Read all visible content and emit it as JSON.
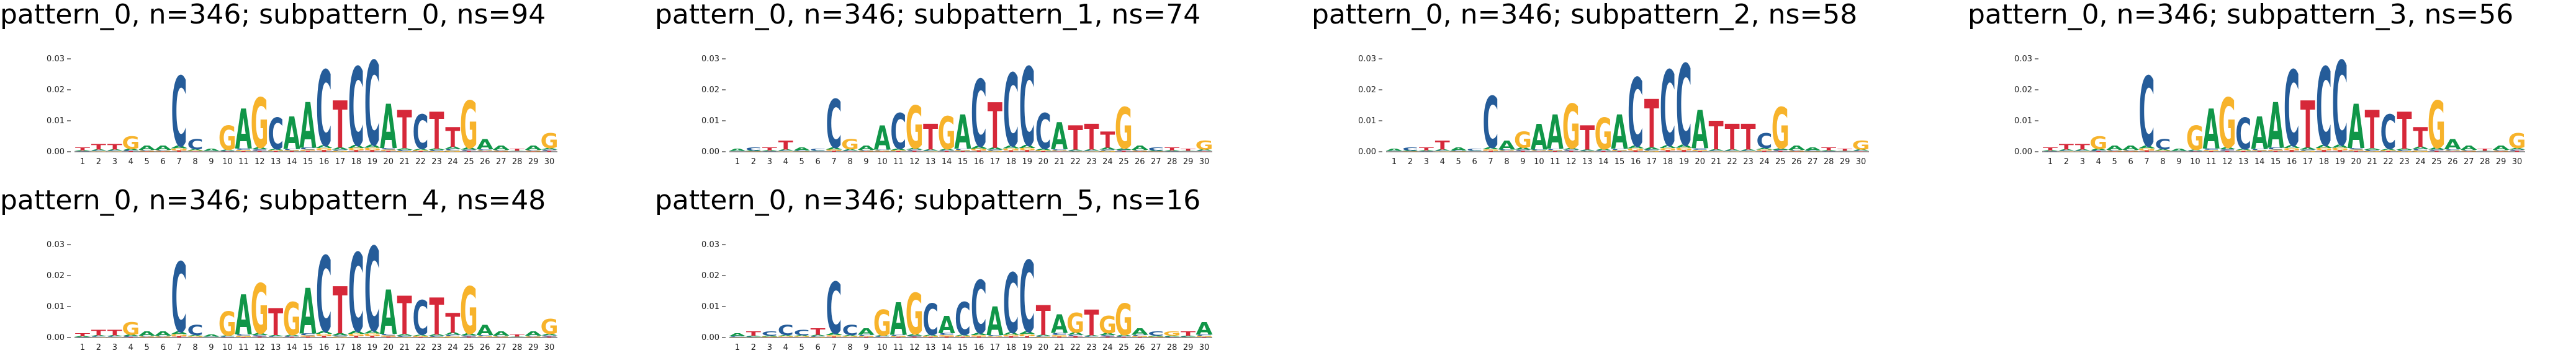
{
  "colors": {
    "A": "#109648",
    "C": "#255C99",
    "G": "#F7B32B",
    "T": "#D62839"
  },
  "chart_data": [
    {
      "type": "sequence-logo",
      "title": "pattern_0, n=346; subpattern_0, ns=94",
      "ylim": [
        0,
        0.035
      ],
      "yticks": [
        "0.00",
        "0.01",
        "0.02",
        "0.03"
      ],
      "positions": [
        "1",
        "2",
        "3",
        "4",
        "5",
        "6",
        "7",
        "8",
        "9",
        "10",
        "11",
        "12",
        "13",
        "14",
        "15",
        "16",
        "17",
        "18",
        "19",
        "20",
        "21",
        "22",
        "23",
        "24",
        "25",
        "26",
        "27",
        "28",
        "29",
        "30"
      ],
      "dominant_letters": [
        "T",
        "T",
        "T",
        "G",
        "A",
        "A",
        "C",
        "C",
        "A",
        "G",
        "A",
        "G",
        "C",
        "A",
        "A",
        "C",
        "T",
        "C",
        "C",
        "A",
        "T",
        "C",
        "T",
        "T",
        "G",
        "A",
        "A",
        "T",
        "A",
        "G"
      ],
      "heights": [
        0.0015,
        0.0025,
        0.0025,
        0.005,
        0.002,
        0.002,
        0.0245,
        0.004,
        0.001,
        0.0085,
        0.014,
        0.0175,
        0.011,
        0.0115,
        0.016,
        0.0265,
        0.0165,
        0.0275,
        0.0295,
        0.0155,
        0.0135,
        0.012,
        0.013,
        0.008,
        0.0165,
        0.004,
        0.002,
        0.001,
        0.002,
        0.006
      ]
    },
    {
      "type": "sequence-logo",
      "title": "pattern_0, n=346; subpattern_1, ns=74",
      "ylim": [
        0,
        0.035
      ],
      "yticks": [
        "0.00",
        "0.01",
        "0.02",
        "0.03"
      ],
      "positions": [
        "1",
        "2",
        "3",
        "4",
        "5",
        "6",
        "7",
        "8",
        "9",
        "10",
        "11",
        "12",
        "13",
        "14",
        "15",
        "16",
        "17",
        "18",
        "19",
        "20",
        "21",
        "22",
        "23",
        "24",
        "25",
        "26",
        "27",
        "28",
        "29",
        "30"
      ],
      "dominant_letters": [
        "A",
        "C",
        "T",
        "T",
        "A",
        "C",
        "C",
        "G",
        "A",
        "A",
        "C",
        "G",
        "T",
        "G",
        "A",
        "C",
        "T",
        "C",
        "C",
        "C",
        "A",
        "T",
        "T",
        "T",
        "G",
        "A",
        "C",
        "T",
        "T",
        "G"
      ],
      "heights": [
        0.001,
        0.0015,
        0.0015,
        0.0035,
        0.0015,
        0.001,
        0.017,
        0.004,
        0.002,
        0.0085,
        0.0125,
        0.015,
        0.009,
        0.0115,
        0.012,
        0.0235,
        0.016,
        0.0255,
        0.0275,
        0.0125,
        0.0095,
        0.0085,
        0.009,
        0.0065,
        0.0145,
        0.002,
        0.0015,
        0.0015,
        0.001,
        0.0035
      ]
    },
    {
      "type": "sequence-logo",
      "title": "pattern_0, n=346; subpattern_2, ns=58",
      "ylim": [
        0,
        0.035
      ],
      "yticks": [
        "0.00",
        "0.01",
        "0.02",
        "0.03"
      ],
      "positions": [
        "1",
        "2",
        "3",
        "4",
        "5",
        "6",
        "7",
        "8",
        "9",
        "10",
        "11",
        "12",
        "13",
        "14",
        "15",
        "16",
        "17",
        "18",
        "19",
        "20",
        "21",
        "22",
        "23",
        "24",
        "25",
        "26",
        "27",
        "28",
        "29",
        "30"
      ],
      "dominant_letters": [
        "A",
        "C",
        "T",
        "T",
        "A",
        "C",
        "C",
        "A",
        "G",
        "A",
        "A",
        "G",
        "T",
        "G",
        "A",
        "C",
        "T",
        "C",
        "C",
        "A",
        "T",
        "T",
        "T",
        "C",
        "G",
        "A",
        "A",
        "T",
        "T",
        "G"
      ],
      "heights": [
        0.001,
        0.0015,
        0.0015,
        0.0035,
        0.0015,
        0.001,
        0.018,
        0.0035,
        0.0065,
        0.009,
        0.012,
        0.0155,
        0.0085,
        0.011,
        0.012,
        0.024,
        0.017,
        0.0265,
        0.0285,
        0.0135,
        0.01,
        0.009,
        0.009,
        0.006,
        0.0145,
        0.002,
        0.0015,
        0.0015,
        0.001,
        0.0035
      ]
    },
    {
      "type": "sequence-logo",
      "title": "pattern_0, n=346; subpattern_3, ns=56",
      "ylim": [
        0,
        0.035
      ],
      "yticks": [
        "0.00",
        "0.01",
        "0.02",
        "0.03"
      ],
      "positions": [
        "1",
        "2",
        "3",
        "4",
        "5",
        "6",
        "7",
        "8",
        "9",
        "10",
        "11",
        "12",
        "13",
        "14",
        "15",
        "16",
        "17",
        "18",
        "19",
        "20",
        "21",
        "22",
        "23",
        "24",
        "25",
        "26",
        "27",
        "28",
        "29",
        "30"
      ],
      "dominant_letters": [
        "T",
        "T",
        "T",
        "G",
        "A",
        "A",
        "C",
        "C",
        "A",
        "G",
        "A",
        "G",
        "C",
        "A",
        "A",
        "C",
        "T",
        "C",
        "C",
        "A",
        "T",
        "C",
        "T",
        "T",
        "G",
        "A",
        "A",
        "T",
        "A",
        "G"
      ],
      "heights": [
        0.0015,
        0.0025,
        0.0025,
        0.005,
        0.002,
        0.002,
        0.0245,
        0.004,
        0.001,
        0.0085,
        0.014,
        0.0175,
        0.011,
        0.0115,
        0.016,
        0.0265,
        0.0165,
        0.0275,
        0.0295,
        0.0155,
        0.0135,
        0.012,
        0.013,
        0.008,
        0.0165,
        0.004,
        0.002,
        0.001,
        0.002,
        0.006
      ]
    },
    {
      "type": "sequence-logo",
      "title": "pattern_0, n=346; subpattern_4, ns=48",
      "ylim": [
        0,
        0.035
      ],
      "yticks": [
        "0.00",
        "0.01",
        "0.02",
        "0.03"
      ],
      "positions": [
        "1",
        "2",
        "3",
        "4",
        "5",
        "6",
        "7",
        "8",
        "9",
        "10",
        "11",
        "12",
        "13",
        "14",
        "15",
        "16",
        "17",
        "18",
        "19",
        "20",
        "21",
        "22",
        "23",
        "24",
        "25",
        "26",
        "27",
        "28",
        "29",
        "30"
      ],
      "dominant_letters": [
        "T",
        "T",
        "T",
        "G",
        "A",
        "A",
        "C",
        "C",
        "A",
        "G",
        "A",
        "G",
        "T",
        "G",
        "A",
        "C",
        "T",
        "C",
        "C",
        "A",
        "T",
        "C",
        "T",
        "T",
        "G",
        "A",
        "A",
        "T",
        "A",
        "G"
      ],
      "heights": [
        0.0015,
        0.0025,
        0.0025,
        0.005,
        0.002,
        0.002,
        0.0245,
        0.004,
        0.001,
        0.0085,
        0.014,
        0.0175,
        0.0095,
        0.0115,
        0.016,
        0.0265,
        0.0165,
        0.0275,
        0.0295,
        0.0155,
        0.0135,
        0.012,
        0.013,
        0.008,
        0.0165,
        0.004,
        0.002,
        0.001,
        0.002,
        0.006
      ]
    },
    {
      "type": "sequence-logo",
      "title": "pattern_0, n=346; subpattern_5, ns=16",
      "ylim": [
        0,
        0.035
      ],
      "yticks": [
        "0.00",
        "0.01",
        "0.02",
        "0.03"
      ],
      "positions": [
        "1",
        "2",
        "3",
        "4",
        "5",
        "6",
        "7",
        "8",
        "9",
        "10",
        "11",
        "12",
        "13",
        "14",
        "15",
        "16",
        "17",
        "18",
        "19",
        "20",
        "21",
        "22",
        "23",
        "24",
        "25",
        "26",
        "27",
        "28",
        "29",
        "30"
      ],
      "dominant_letters": [
        "A",
        "T",
        "C",
        "C",
        "C",
        "T",
        "C",
        "C",
        "A",
        "G",
        "A",
        "G",
        "C",
        "A",
        "C",
        "C",
        "A",
        "C",
        "C",
        "T",
        "A",
        "G",
        "T",
        "G",
        "G",
        "A",
        "C",
        "G",
        "T",
        "A"
      ],
      "heights": [
        0.0015,
        0.002,
        0.002,
        0.004,
        0.0025,
        0.003,
        0.018,
        0.004,
        0.003,
        0.009,
        0.0115,
        0.0145,
        0.011,
        0.007,
        0.0115,
        0.0185,
        0.01,
        0.021,
        0.025,
        0.0105,
        0.0075,
        0.008,
        0.009,
        0.007,
        0.011,
        0.003,
        0.002,
        0.002,
        0.002,
        0.005
      ]
    }
  ]
}
